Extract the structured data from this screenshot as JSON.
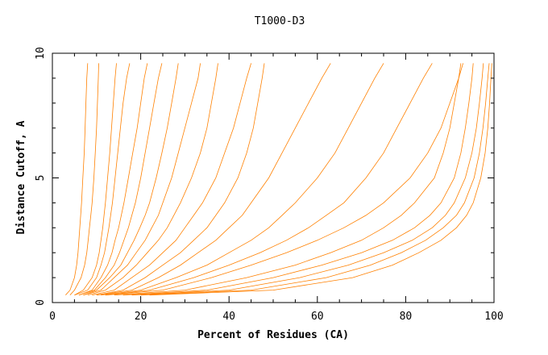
{
  "chart_data": {
    "type": "line",
    "title": "T1000-D3",
    "xlabel": "Percent of Residues (CA)",
    "ylabel": "Distance Cutoff, A",
    "xlim": [
      0,
      100
    ],
    "ylim": [
      0,
      10
    ],
    "x_ticks": [
      0,
      20,
      40,
      60,
      80,
      100
    ],
    "y_ticks": [
      0,
      5,
      10
    ],
    "grid": false,
    "line_color": "#ff8000",
    "y_max_plotted": 9.6,
    "y_samples": [
      0.3,
      0.5,
      1,
      1.5,
      2,
      2.5,
      3,
      3.5,
      4,
      5,
      6,
      7,
      8,
      9,
      9.6
    ],
    "series": [
      {
        "x": [
          3,
          4,
          5,
          5.5,
          5.8,
          6,
          6.2,
          6.4,
          6.6,
          6.9,
          7.2,
          7.4,
          7.6,
          7.8,
          8
        ]
      },
      {
        "x": [
          4,
          5,
          6.5,
          7.3,
          7.8,
          8.1,
          8.4,
          8.7,
          9,
          9.4,
          9.7,
          10,
          10.2,
          10.4,
          10.5
        ]
      },
      {
        "x": [
          5,
          7,
          9,
          10,
          10.6,
          11,
          11.4,
          11.7,
          12,
          12.5,
          13,
          13.4,
          13.8,
          14.2,
          14.5
        ]
      },
      {
        "x": [
          5,
          8,
          10,
          11,
          11.8,
          12.3,
          12.8,
          13.2,
          13.6,
          14.2,
          14.8,
          15.4,
          16,
          16.8,
          17.5
        ]
      },
      {
        "x": [
          6,
          9,
          11,
          12.5,
          13.5,
          14.2,
          15,
          15.6,
          16.2,
          17.2,
          18.2,
          19.2,
          20,
          20.8,
          21.5
        ]
      },
      {
        "x": [
          6,
          9.5,
          12,
          14,
          15.2,
          16.2,
          17.2,
          18,
          18.8,
          20,
          21,
          22,
          23,
          24,
          24.8
        ]
      },
      {
        "x": [
          7,
          10,
          13,
          15.5,
          17,
          18.5,
          19.8,
          21,
          22,
          23.5,
          24.8,
          26,
          27,
          28,
          28.5
        ]
      },
      {
        "x": [
          7,
          11,
          14,
          17,
          19,
          21,
          22.5,
          24,
          25,
          27,
          28.5,
          30,
          31.5,
          33,
          33.5
        ]
      },
      {
        "x": [
          8,
          12,
          16,
          19,
          21.5,
          24,
          26,
          27.5,
          29,
          31.5,
          33.5,
          35,
          36,
          37,
          37.5
        ]
      },
      {
        "x": [
          9,
          14,
          18,
          22,
          25,
          28,
          30,
          32,
          34,
          37,
          39,
          41,
          42.5,
          44,
          45
        ]
      },
      {
        "x": [
          10,
          16,
          21,
          25,
          29,
          32,
          35,
          37,
          39,
          42,
          44,
          45.5,
          46.5,
          47.5,
          48
        ]
      },
      {
        "x": [
          10,
          18,
          24,
          29,
          33,
          37,
          40,
          43,
          45,
          49,
          52,
          55,
          58,
          61,
          63
        ]
      },
      {
        "x": [
          11,
          20,
          28,
          35,
          40,
          45,
          49,
          52,
          55,
          60,
          64,
          67,
          70,
          73,
          75
        ]
      },
      {
        "x": [
          12,
          22,
          32,
          40,
          47,
          53,
          58,
          62,
          66,
          71,
          75,
          78,
          81,
          84,
          86
        ]
      },
      {
        "x": [
          12,
          25,
          36,
          45,
          53,
          60,
          66,
          71,
          75,
          81,
          85,
          88,
          90,
          92,
          93
        ]
      },
      {
        "x": [
          14,
          30,
          44,
          55,
          63,
          70,
          75,
          79,
          82,
          86.5,
          88.5,
          90,
          91,
          92,
          92.5
        ]
      },
      {
        "x": [
          16,
          35,
          50,
          61,
          70,
          77,
          82,
          85.5,
          88,
          91,
          92.5,
          93.5,
          94.3,
          95,
          95.3
        ]
      },
      {
        "x": [
          18,
          40,
          56,
          67,
          75,
          81.5,
          86,
          89,
          91,
          93.5,
          95,
          96,
          96.7,
          97.3,
          97.6
        ]
      },
      {
        "x": [
          20,
          45,
          62,
          72,
          79,
          84.5,
          88.5,
          91.5,
          93.3,
          95.5,
          96.7,
          97.5,
          98.1,
          98.6,
          98.9
        ]
      },
      {
        "x": [
          22,
          50,
          68,
          77,
          83,
          88,
          91.5,
          93.8,
          95.3,
          97,
          98,
          98.6,
          99,
          99.3,
          99.5
        ]
      }
    ]
  }
}
